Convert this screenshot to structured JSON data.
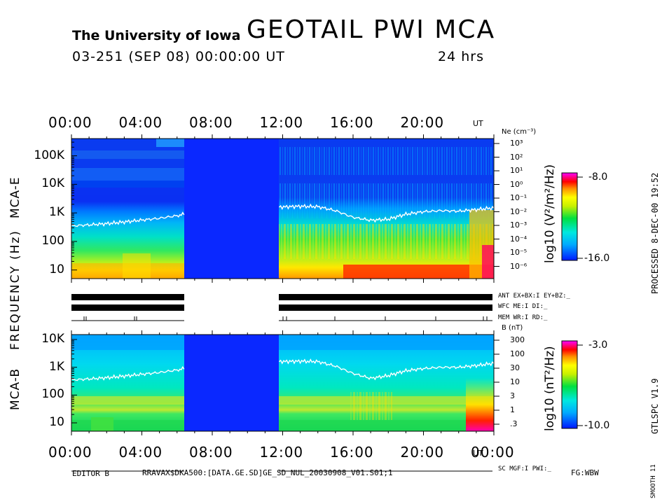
{
  "header": {
    "institution": "The University of Iowa",
    "title": "GEOTAIL  PWI  MCA",
    "date_line": "03-251 (SEP 08) 00:00:00 UT",
    "duration": "24 hrs"
  },
  "time_axis": {
    "top_labels": [
      "00:00",
      "04:00",
      "08:00",
      "12:00",
      "16:00",
      "20:00"
    ],
    "bottom_labels": [
      "00:00",
      "04:00",
      "08:00",
      "12:00",
      "16:00",
      "20:00",
      "00:00"
    ],
    "ut": "UT"
  },
  "side_labels": {
    "frequency": "FREQUENCY (Hz)",
    "mca_e": "MCA-E",
    "mca_b": "MCA-B",
    "processed": "PROCESSED  8-DEC-00  19:52",
    "version": "GTLSPC   V1.9",
    "smooth": "SMOOTH 11"
  },
  "status_block": {
    "line1": "ANT EX+BX:I  EY+BZ:_",
    "line2": "WFC ME:I     DI:_",
    "line3": "MEM WR:I     RD:_",
    "bottom": "SC MGF:I   PWI:_"
  },
  "footer": {
    "editor": "EDITOR B",
    "path": "RRAVAX$DKA500:[DATA.GE.SD]GE_SD_NUL_20030908_V01.S01;1",
    "fg": "FG:WBW"
  },
  "colorbars": {
    "e": {
      "max": "-8.0",
      "min": "-16.0",
      "unit": "log10 (V²/m²/Hz)"
    },
    "b": {
      "max": "-3.0",
      "min": "-10.0",
      "unit": "log10 (nT²/Hz)"
    }
  },
  "chart_data": [
    {
      "type": "heatmap",
      "title": "MCA-E",
      "xlabel": "UT",
      "ylabel": "Frequency (Hz)",
      "xlim": [
        0,
        24
      ],
      "y_scale": "log",
      "ylim": [
        5,
        400000
      ],
      "y_ticks": [
        "10",
        "100",
        "1K",
        "10K",
        "100K"
      ],
      "right_axis_label": "Ne (cm⁻³)",
      "right_axis_ticks": [
        "10³",
        "10²",
        "10¹",
        "10⁰",
        "10⁻¹",
        "10⁻²",
        "10⁻³",
        "10⁻⁴",
        "10⁻⁵",
        "10⁻⁶"
      ],
      "colorbar_range": [
        -16.0,
        -8.0
      ],
      "data_gap_hours": [
        6.4,
        11.8
      ],
      "white_line_freq_hz": [
        [
          0.0,
          350
        ],
        [
          1.0,
          380
        ],
        [
          2.0,
          420
        ],
        [
          3.0,
          480
        ],
        [
          4.0,
          560
        ],
        [
          5.0,
          650
        ],
        [
          6.0,
          800
        ],
        [
          6.4,
          900
        ],
        [
          11.8,
          1600
        ],
        [
          13.0,
          1700
        ],
        [
          14.0,
          1650
        ],
        [
          15.0,
          1200
        ],
        [
          16.0,
          700
        ],
        [
          17.0,
          550
        ],
        [
          18.0,
          600
        ],
        [
          19.0,
          900
        ],
        [
          20.0,
          1100
        ],
        [
          21.0,
          1200
        ],
        [
          22.0,
          1150
        ],
        [
          23.0,
          1300
        ],
        [
          24.0,
          1500
        ]
      ]
    },
    {
      "type": "heatmap",
      "title": "MCA-B",
      "xlabel": "UT",
      "ylabel": "Frequency (Hz)",
      "xlim": [
        0,
        24
      ],
      "y_scale": "log",
      "ylim": [
        5,
        15000
      ],
      "y_ticks": [
        "10",
        "100",
        "1K",
        "10K"
      ],
      "right_axis_label": "B (nT)",
      "right_axis_ticks": [
        "300",
        "100",
        "30",
        "10",
        "3",
        "1",
        ".3"
      ],
      "colorbar_range": [
        -10.0,
        -3.0
      ],
      "data_gap_hours": [
        6.4,
        11.8
      ],
      "white_line_freq_hz": [
        [
          0.0,
          350
        ],
        [
          1.0,
          380
        ],
        [
          2.0,
          420
        ],
        [
          3.0,
          480
        ],
        [
          4.0,
          560
        ],
        [
          5.0,
          650
        ],
        [
          6.0,
          800
        ],
        [
          6.4,
          900
        ],
        [
          11.8,
          1600
        ],
        [
          13.0,
          1650
        ],
        [
          14.0,
          1600
        ],
        [
          15.0,
          1100
        ],
        [
          16.0,
          600
        ],
        [
          17.0,
          400
        ],
        [
          18.0,
          500
        ],
        [
          19.0,
          750
        ],
        [
          20.0,
          900
        ],
        [
          21.0,
          1000
        ],
        [
          22.0,
          1000
        ],
        [
          23.0,
          1150
        ],
        [
          24.0,
          1400
        ]
      ]
    }
  ]
}
